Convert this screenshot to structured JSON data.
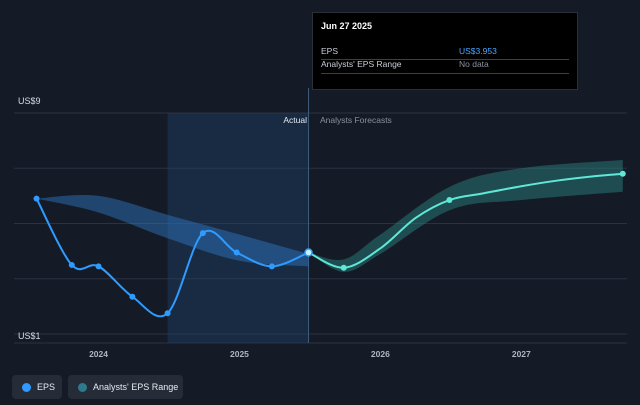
{
  "tooltip": {
    "date": "Jun 27 2025",
    "rows": [
      {
        "label": "EPS",
        "value": "US$3.953",
        "value_color": "#4aa8ff"
      },
      {
        "label": "Analysts' EPS Range",
        "value": "No data",
        "value_color": "#8a919c"
      }
    ]
  },
  "legend": {
    "items": [
      {
        "label": "EPS",
        "color": "#2f9bff"
      },
      {
        "label": "Analysts' EPS Range",
        "color": "#2c7a8c"
      }
    ]
  },
  "chart_data": {
    "type": "line",
    "y_unit_labels": {
      "top": "US$9",
      "bottom": "US$1"
    },
    "ylim": [
      1,
      9
    ],
    "xlim": [
      2023.4,
      2027.75
    ],
    "x_ticks": [
      {
        "label": "2024",
        "x": 2024.0
      },
      {
        "label": "2025",
        "x": 2025.0
      },
      {
        "label": "2026",
        "x": 2026.0
      },
      {
        "label": "2027",
        "x": 2027.0
      }
    ],
    "region_labels": {
      "actual": "Actual",
      "forecast": "Analysts Forecasts"
    },
    "divider_x": 2025.49,
    "past_highlight_start": 2024.49,
    "grid": true,
    "series": [
      {
        "name": "EPS",
        "color": "#2f9bff",
        "points": [
          [
            2023.56,
            5.9
          ],
          [
            2023.81,
            3.5
          ],
          [
            2024.0,
            3.45
          ],
          [
            2024.24,
            2.35
          ],
          [
            2024.49,
            1.75
          ],
          [
            2024.74,
            4.65
          ],
          [
            2024.98,
            3.95
          ],
          [
            2025.23,
            3.45
          ],
          [
            2025.49,
            3.95
          ]
        ]
      },
      {
        "name": "EPS Forecast",
        "color": "#5fe8d8",
        "points": [
          [
            2025.49,
            3.95
          ],
          [
            2025.74,
            3.4
          ],
          [
            2026.0,
            4.1
          ],
          [
            2026.25,
            5.2
          ],
          [
            2026.49,
            5.85
          ],
          [
            2026.74,
            6.1
          ],
          [
            2027.0,
            6.35
          ],
          [
            2027.25,
            6.55
          ],
          [
            2027.5,
            6.7
          ],
          [
            2027.72,
            6.8
          ]
        ]
      }
    ],
    "bands": [
      {
        "name": "Analysts' EPS Range (past)",
        "color": "#2f7ccc",
        "points": [
          [
            2023.56,
            5.9,
            5.9
          ],
          [
            2024.0,
            6.0,
            5.4
          ],
          [
            2024.5,
            5.3,
            4.45
          ],
          [
            2025.0,
            4.6,
            3.65
          ],
          [
            2025.49,
            3.9,
            3.45
          ]
        ]
      },
      {
        "name": "Analysts' EPS Range (forecast)",
        "color": "#2c8a86",
        "points": [
          [
            2025.49,
            3.95,
            3.95
          ],
          [
            2025.74,
            3.7,
            3.25
          ],
          [
            2026.0,
            4.6,
            3.9
          ],
          [
            2026.5,
            6.35,
            5.5
          ],
          [
            2027.0,
            7.0,
            5.85
          ],
          [
            2027.72,
            7.3,
            6.15
          ]
        ]
      }
    ]
  }
}
